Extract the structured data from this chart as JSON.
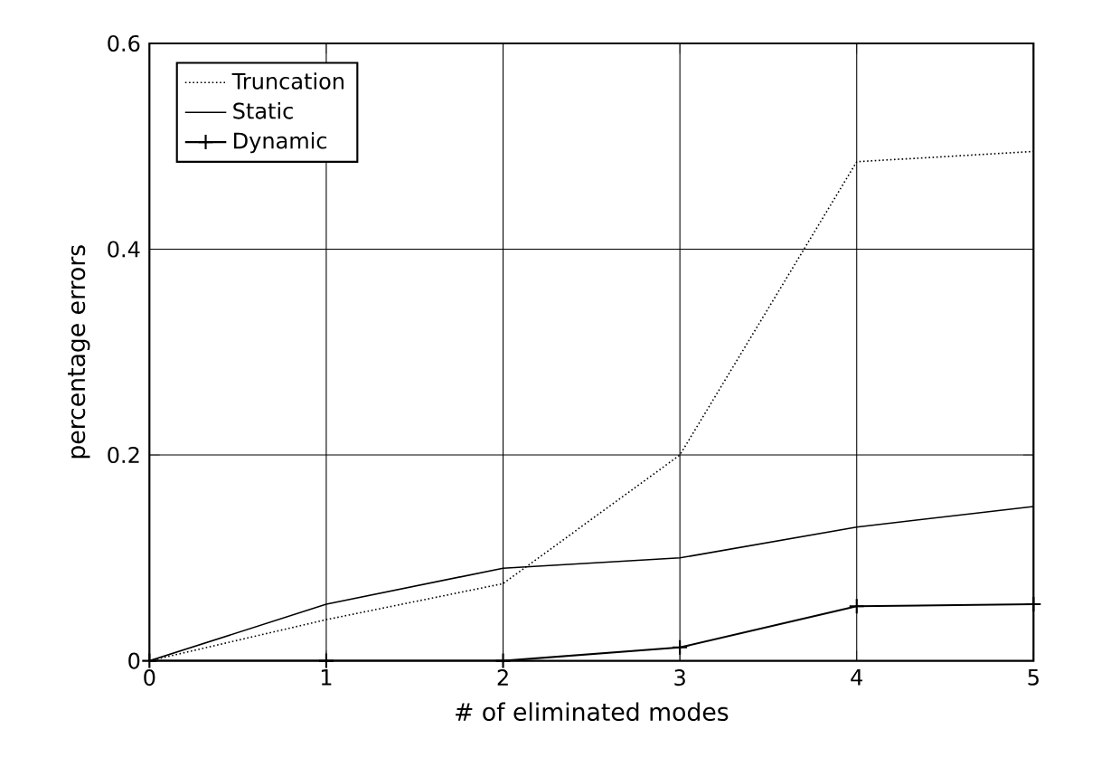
{
  "chart_data": {
    "type": "line",
    "xlabel": "# of eliminated modes",
    "ylabel": "percentage errors",
    "x": [
      0,
      1,
      2,
      3,
      4,
      5
    ],
    "series": [
      {
        "name": "Truncation",
        "color": "#000000",
        "line_style": "dotted",
        "marker": "none",
        "values": [
          0,
          0.04,
          0.075,
          0.2,
          0.485,
          0.495
        ]
      },
      {
        "name": "Static",
        "color": "#000000",
        "line_style": "solid",
        "marker": "none",
        "values": [
          0,
          0.055,
          0.09,
          0.1,
          0.13,
          0.15
        ]
      },
      {
        "name": "Dynamic",
        "color": "#000000",
        "line_style": "solid",
        "marker": "cross",
        "values": [
          0,
          0,
          0,
          0.013,
          0.053,
          0.055
        ]
      }
    ],
    "xlim": [
      0,
      5
    ],
    "ylim": [
      0,
      0.6
    ],
    "xticks": [
      0,
      1,
      2,
      3,
      4,
      5
    ],
    "yticks": [
      0,
      0.2,
      0.4,
      0.6
    ],
    "grid": true,
    "legend": "top left"
  }
}
